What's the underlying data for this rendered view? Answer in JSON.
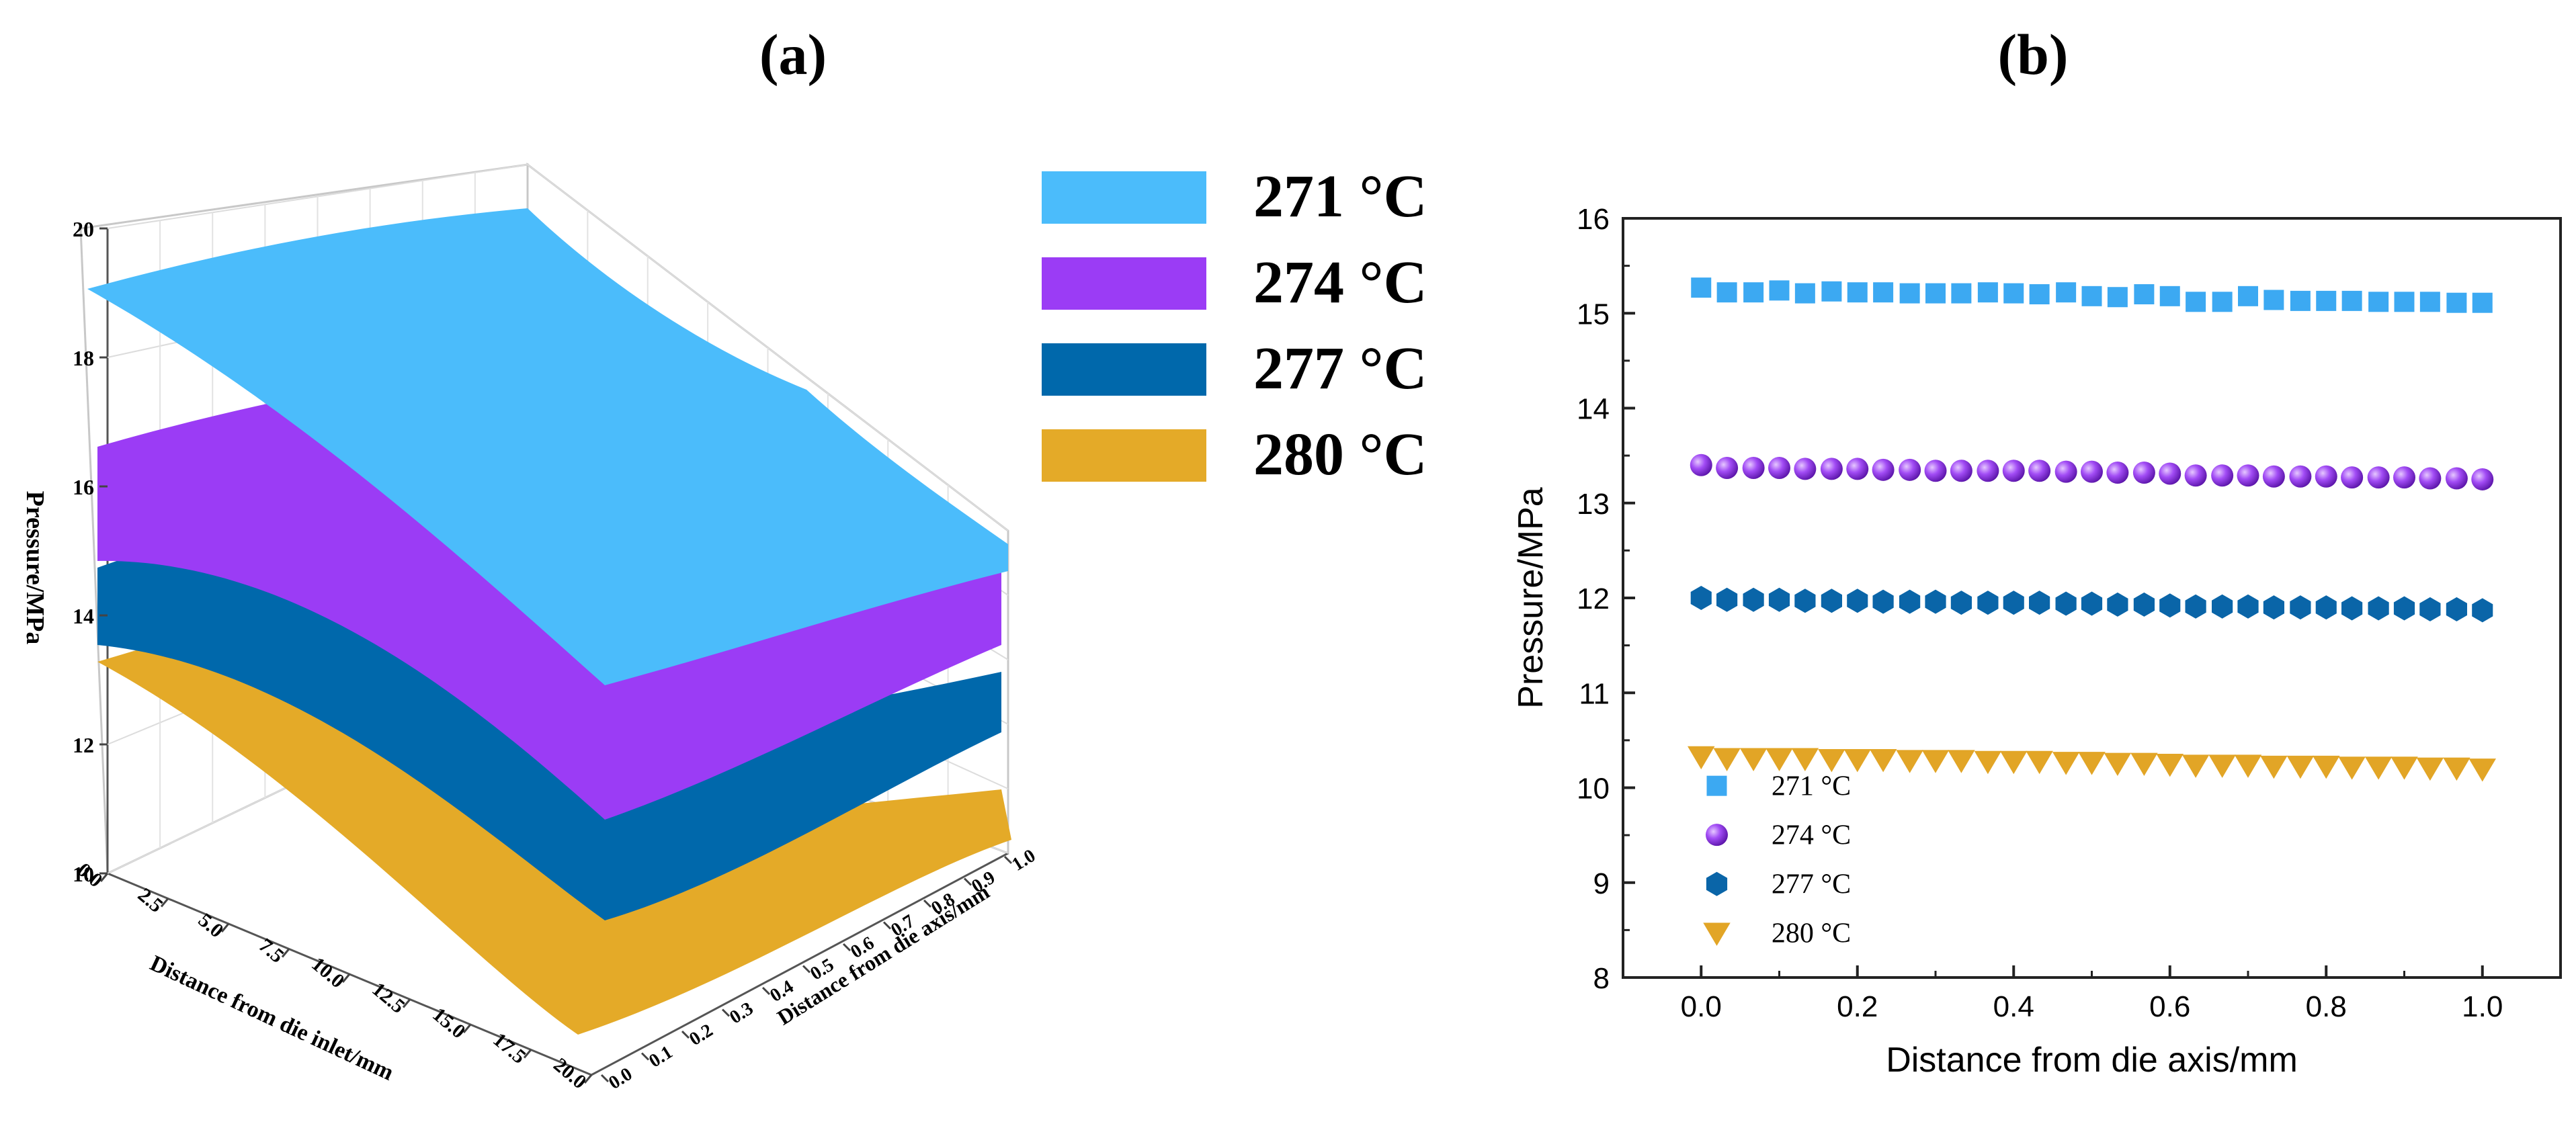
{
  "chart_data": [
    {
      "panel_label": "(a)",
      "type": "surface3d",
      "zlabel": "Pressure/MPa",
      "xlabel": "Distance from die inlet/mm",
      "ylabel": "Distance from die axis/mm",
      "z_ticks": [
        "10",
        "12",
        "14",
        "16",
        "18",
        "20"
      ],
      "x_ticks": [
        "0.0",
        "2.5",
        "5.0",
        "7.5",
        "10.0",
        "12.5",
        "15.0",
        "17.5",
        "20.0"
      ],
      "y_ticks": [
        "0.0",
        "0.1",
        "0.2",
        "0.3",
        "0.4",
        "0.5",
        "0.6",
        "0.7",
        "0.8",
        "0.9",
        "1.0"
      ],
      "zlim": [
        10,
        20
      ],
      "xlim": [
        0,
        20
      ],
      "ylim": [
        0,
        1
      ],
      "legend": [
        {
          "label": "271 °C",
          "color": "#4bbcfb"
        },
        {
          "label": "274 °C",
          "color": "#9b3cf5"
        },
        {
          "label": "277 °C",
          "color": "#0068ab"
        },
        {
          "label": "280 °C",
          "color": "#e4aa28"
        }
      ],
      "surfaces": [
        {
          "name": "271 °C",
          "inlet_pressure": 19.3,
          "outlet_pressure": 15.1
        },
        {
          "name": "274 °C",
          "inlet_pressure": 16.8,
          "outlet_pressure": 13.2
        },
        {
          "name": "277 °C",
          "inlet_pressure": 15.0,
          "outlet_pressure": 11.9
        },
        {
          "name": "280 °C",
          "inlet_pressure": 13.5,
          "outlet_pressure": 10.2
        }
      ]
    },
    {
      "panel_label": "(b)",
      "type": "scatter",
      "xlabel": "Distance from die axis/mm",
      "ylabel": "Pressure/MPa",
      "xlim": [
        -0.1,
        1.1
      ],
      "ylim": [
        8,
        16
      ],
      "x_ticks": [
        "0.0",
        "0.2",
        "0.4",
        "0.6",
        "0.8",
        "1.0"
      ],
      "y_ticks": [
        "8",
        "9",
        "10",
        "11",
        "12",
        "13",
        "14",
        "15",
        "16"
      ],
      "legend_position": "bottom-left",
      "x": [
        0.0,
        0.033,
        0.067,
        0.1,
        0.133,
        0.167,
        0.2,
        0.233,
        0.267,
        0.3,
        0.333,
        0.367,
        0.4,
        0.433,
        0.467,
        0.5,
        0.533,
        0.567,
        0.6,
        0.633,
        0.667,
        0.7,
        0.733,
        0.767,
        0.8,
        0.833,
        0.867,
        0.9,
        0.933,
        0.967,
        1.0
      ],
      "series": [
        {
          "name": "271 °C",
          "marker": "square",
          "color": "#3ca9f2",
          "values": [
            15.27,
            15.22,
            15.22,
            15.24,
            15.21,
            15.23,
            15.22,
            15.22,
            15.21,
            15.21,
            15.21,
            15.22,
            15.21,
            15.2,
            15.22,
            15.18,
            15.17,
            15.2,
            15.18,
            15.12,
            15.12,
            15.18,
            15.14,
            15.13,
            15.13,
            15.13,
            15.12,
            15.12,
            15.12,
            15.11,
            15.11
          ]
        },
        {
          "name": "274 °C",
          "marker": "sphere",
          "color": "#9a3cf0",
          "values": [
            13.4,
            13.37,
            13.37,
            13.37,
            13.36,
            13.36,
            13.36,
            13.35,
            13.35,
            13.34,
            13.34,
            13.34,
            13.34,
            13.34,
            13.33,
            13.33,
            13.32,
            13.32,
            13.31,
            13.29,
            13.29,
            13.29,
            13.28,
            13.28,
            13.28,
            13.27,
            13.27,
            13.27,
            13.26,
            13.26,
            13.25
          ]
        },
        {
          "name": "277 °C",
          "marker": "hexagon",
          "color": "#0a65a8",
          "values": [
            12.0,
            11.98,
            11.98,
            11.98,
            11.97,
            11.97,
            11.97,
            11.96,
            11.96,
            11.96,
            11.95,
            11.95,
            11.95,
            11.95,
            11.94,
            11.94,
            11.93,
            11.93,
            11.92,
            11.91,
            11.91,
            11.91,
            11.9,
            11.9,
            11.9,
            11.89,
            11.89,
            11.89,
            11.88,
            11.88,
            11.87
          ]
        },
        {
          "name": "280 °C",
          "marker": "triangle-down",
          "color": "#e2a526",
          "values": [
            10.33,
            10.31,
            10.31,
            10.31,
            10.31,
            10.3,
            10.3,
            10.3,
            10.29,
            10.29,
            10.29,
            10.28,
            10.28,
            10.28,
            10.27,
            10.27,
            10.26,
            10.26,
            10.25,
            10.24,
            10.24,
            10.24,
            10.23,
            10.23,
            10.23,
            10.22,
            10.22,
            10.22,
            10.21,
            10.21,
            10.2
          ]
        }
      ]
    }
  ]
}
